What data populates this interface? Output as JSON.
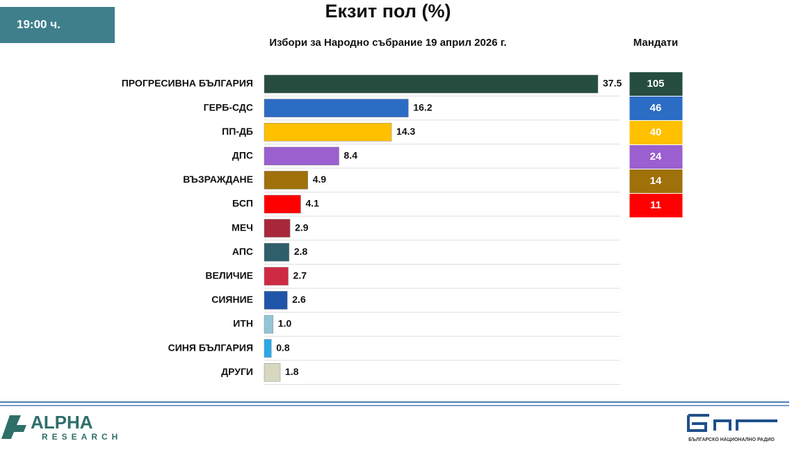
{
  "header": {
    "time": "19:00 ч."
  },
  "chart_data": {
    "type": "bar",
    "title": "Екзит пол (%)",
    "subtitle": "Избори за Народно събрание 19 април 2026 г.",
    "categories": [
      "ПРОГРЕСИВНА БЪЛГАРИЯ",
      "ГЕРБ-СДС",
      "ПП-ДБ",
      "ДПС",
      "ВЪЗРАЖДАНЕ",
      "БСП",
      "МЕЧ",
      "АПС",
      "ВЕЛИЧИЕ",
      "СИЯНИЕ",
      "ИТН",
      "СИНЯ БЪЛГАРИЯ",
      "ДРУГИ"
    ],
    "values": [
      37.5,
      16.2,
      14.3,
      8.4,
      4.9,
      4.1,
      2.9,
      2.8,
      2.7,
      2.6,
      1.0,
      0.8,
      1.8
    ],
    "value_labels": [
      "37.5",
      "16.2",
      "14.3",
      "8.4",
      "4.9",
      "4.1",
      "2.9",
      "2.8",
      "2.7",
      "2.6",
      "1.0",
      "0.8",
      "1.8"
    ],
    "colors": [
      "#264d40",
      "#2b6cc4",
      "#ffc000",
      "#9b5fcf",
      "#a0700a",
      "#ff0000",
      "#a8283a",
      "#2e5f6a",
      "#cf2a44",
      "#1f55a8",
      "#92c5d8",
      "#29a8e8",
      "#d8d8c0"
    ],
    "seats_title": "Мандати",
    "seats": [
      105,
      46,
      40,
      24,
      14,
      11
    ]
  },
  "footer": {
    "left_logo": "ALPHA",
    "left_logo_sub": "RESEARCH",
    "right_logo_sub": "БЪЛГАРСКО НАЦИОНАЛНО РАДИО"
  }
}
